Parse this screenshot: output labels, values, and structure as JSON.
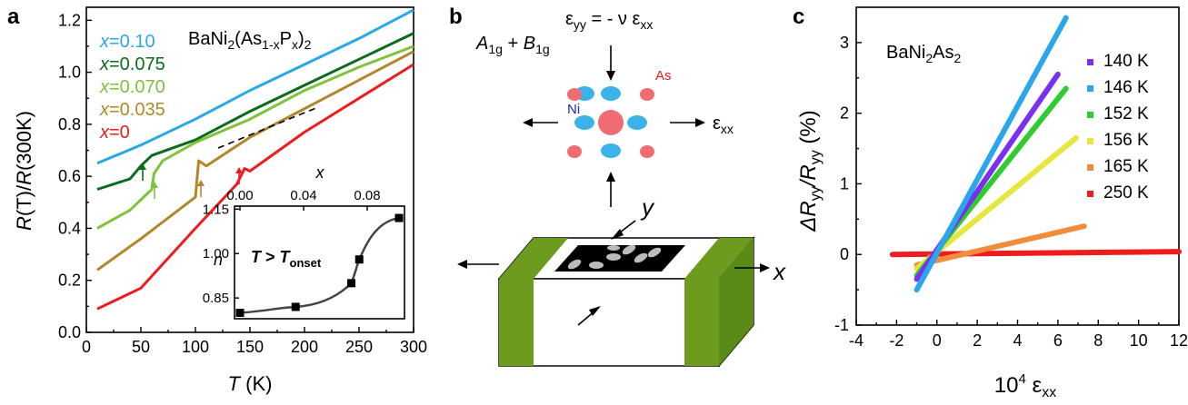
{
  "panels": {
    "a": "a",
    "b": "b",
    "c": "c"
  },
  "panel_a": {
    "compound": {
      "pre": "BaNi",
      "s1": "2",
      "mid": "(As",
      "s2": "1-x",
      "mid2": "P",
      "s3": "x",
      "post": ")",
      "s4": "2"
    },
    "legend": [
      {
        "pre": "x",
        "label": "=0.10",
        "color": "#29a8e8"
      },
      {
        "pre": "x",
        "label": "=0.075",
        "color": "#0b6b1d"
      },
      {
        "pre": "x",
        "label": "=0.070",
        "color": "#7ec338"
      },
      {
        "pre": "x",
        "label": "=0.035",
        "color": "#b4862a"
      },
      {
        "pre": "x",
        "label": "=0",
        "color": "#ee1c1c"
      }
    ],
    "ylabel": {
      "a": "R",
      "b": "(T)/",
      "c": "R",
      "d": "(300K)"
    },
    "xlabel": {
      "a": "T",
      "b": " (K)"
    },
    "xticks": [
      "0",
      "50",
      "100",
      "150",
      "200",
      "250",
      "300"
    ],
    "yticks": [
      "0.0",
      "0.2",
      "0.4",
      "0.6",
      "0.8",
      "1.0",
      "1.2"
    ],
    "inset": {
      "top_axis_label": "x",
      "top_ticks": [
        "0.00",
        "0.04",
        "0.08"
      ],
      "ylabel": "n",
      "yticks": [
        "0.85",
        "1.00",
        "1.15"
      ],
      "text": {
        "a": "T",
        "b": " > ",
        "c": "T",
        "d": "onset"
      }
    }
  },
  "panel_b": {
    "sym": {
      "a": "A",
      "a_sub": "1g",
      "plus": " + ",
      "b": "B",
      "b_sub": "1g"
    },
    "strain": {
      "a": "ε",
      "a_sub": "yy",
      "eq": " = - ν ε",
      "b_sub": "xx"
    },
    "exx": {
      "a": "ε",
      "sub": "xx"
    },
    "ni": "Ni",
    "as": "As",
    "axis_y": "y",
    "axis_x": "x"
  },
  "panel_c": {
    "compound": {
      "pre": "BaNi",
      "s1": "2",
      "mid": "As",
      "s2": "2"
    },
    "ylabel": {
      "a": "ΔR",
      "a_sub": "yy",
      "slash": "/R",
      "b_sub": "yy",
      "unit": " (%)"
    },
    "xlabel": {
      "pre": "10",
      "sup": "4",
      "eps": " ε",
      "sub": "xx"
    },
    "xticks": [
      "-4",
      "-2",
      "0",
      "2",
      "4",
      "6",
      "8",
      "10",
      "12"
    ],
    "yticks": [
      "-1",
      "0",
      "1",
      "2",
      "3"
    ],
    "legend": [
      {
        "label": "140 K",
        "color": "#7b2ff0"
      },
      {
        "label": "146 K",
        "color": "#2aa6ea"
      },
      {
        "label": "152 K",
        "color": "#2ecc2e"
      },
      {
        "label": "156 K",
        "color": "#e6e63c"
      },
      {
        "label": "165 K",
        "color": "#f08c3c"
      },
      {
        "label": "250 K",
        "color": "#ee1c1c"
      }
    ]
  },
  "chart_data": [
    {
      "type": "line",
      "panel": "a",
      "xlabel": "T (K)",
      "ylabel": "R(T)/R(300K)",
      "xlim": [
        0,
        300
      ],
      "ylim": [
        0,
        1.25
      ],
      "series": [
        {
          "name": "x=0.10",
          "x": [
            10,
            50,
            100,
            150,
            200,
            250,
            300
          ],
          "y": [
            0.65,
            0.72,
            0.82,
            0.93,
            1.03,
            1.13,
            1.24
          ]
        },
        {
          "name": "x=0.075",
          "x": [
            10,
            40,
            50,
            60,
            100,
            150,
            200,
            250,
            300
          ],
          "y": [
            0.55,
            0.59,
            0.64,
            0.68,
            0.74,
            0.85,
            0.95,
            1.05,
            1.15
          ]
        },
        {
          "name": "x=0.070",
          "x": [
            10,
            40,
            60,
            62,
            70,
            100,
            150,
            200,
            250,
            300
          ],
          "y": [
            0.4,
            0.47,
            0.55,
            0.61,
            0.66,
            0.73,
            0.82,
            0.93,
            1.02,
            1.1
          ]
        },
        {
          "name": "x=0.035",
          "x": [
            10,
            50,
            100,
            103,
            110,
            150,
            200,
            250,
            300
          ],
          "y": [
            0.24,
            0.36,
            0.52,
            0.66,
            0.64,
            0.75,
            0.86,
            0.97,
            1.08
          ]
        },
        {
          "name": "x=0",
          "x": [
            10,
            50,
            100,
            138,
            145,
            150,
            200,
            250,
            300
          ],
          "y": [
            0.09,
            0.17,
            0.4,
            0.57,
            0.63,
            0.62,
            0.77,
            0.9,
            1.03
          ]
        }
      ],
      "inset": {
        "xlim": [
          0,
          0.1
        ],
        "ylim": [
          0.78,
          1.16
        ],
        "x": [
          0.0,
          0.035,
          0.07,
          0.075,
          0.1
        ],
        "y": [
          0.8,
          0.82,
          0.9,
          0.98,
          1.12
        ]
      }
    },
    {
      "type": "scatter",
      "panel": "c",
      "xlabel": "10^4 εxx",
      "ylabel": "ΔRyy/Ryy (%)",
      "xlim": [
        -4,
        12
      ],
      "ylim": [
        -1,
        3.5
      ],
      "series": [
        {
          "name": "140 K",
          "x": [
            -1.0,
            6.0
          ],
          "y": [
            -0.35,
            2.55
          ]
        },
        {
          "name": "146 K",
          "x": [
            -1.0,
            6.4
          ],
          "y": [
            -0.5,
            3.35
          ]
        },
        {
          "name": "152 K",
          "x": [
            -1.0,
            6.4
          ],
          "y": [
            -0.3,
            2.35
          ]
        },
        {
          "name": "156 K",
          "x": [
            -1.0,
            6.9
          ],
          "y": [
            -0.2,
            1.65
          ]
        },
        {
          "name": "165 K",
          "x": [
            -1.0,
            7.3
          ],
          "y": [
            -0.15,
            0.4
          ]
        },
        {
          "name": "250 K",
          "x": [
            -2.2,
            12.0
          ],
          "y": [
            0.0,
            0.04
          ]
        }
      ]
    }
  ]
}
